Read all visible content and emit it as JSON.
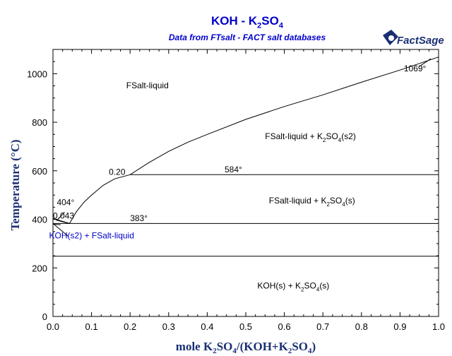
{
  "chart_data": {
    "type": "line",
    "title_main": "KOH - K",
    "title_main_sub": "2",
    "title_main_tail": "SO",
    "title_main_sub2": "4",
    "subtitle": "Data from FTsalt - FACT salt databases",
    "logo_text": "FactSage",
    "xlabel_parts": [
      "mole K",
      "2",
      "SO",
      "4",
      "/(KOH+K",
      "2",
      "SO",
      "4",
      ")"
    ],
    "ylabel": "Temperature (°C)",
    "xlim": [
      0,
      1
    ],
    "ylim": [
      0,
      1100
    ],
    "xticks": [
      "0.0",
      "0.1",
      "0.2",
      "0.3",
      "0.4",
      "0.5",
      "0.6",
      "0.7",
      "0.8",
      "0.9",
      "1.0"
    ],
    "yticks": [
      "0",
      "200",
      "400",
      "600",
      "800",
      "1000"
    ],
    "grid": false,
    "series": [
      {
        "kind": "liquidus",
        "x": [
          0.0,
          0.01,
          0.02,
          0.03,
          0.043,
          0.06,
          0.08,
          0.1,
          0.13,
          0.16,
          0.2,
          0.25,
          0.3,
          0.35,
          0.4,
          0.5,
          0.6,
          0.7,
          0.8,
          0.9,
          1.0
        ],
        "y": [
          404,
          397,
          392,
          388,
          383,
          430,
          470,
          500,
          540,
          567,
          584,
          635,
          680,
          718,
          750,
          812,
          865,
          913,
          965,
          1015,
          1069
        ]
      },
      {
        "kind": "koh-liquidus",
        "x": [
          0.0,
          0.043
        ],
        "y": [
          404,
          383
        ]
      },
      {
        "kind": "solidus-tick",
        "x": [
          0.0,
          0.02
        ],
        "y": [
          380,
          378
        ]
      },
      {
        "kind": "eutectic",
        "x": [
          0.0,
          1.0
        ],
        "y": [
          383,
          383
        ]
      },
      {
        "kind": "peritectic",
        "x": [
          0.2,
          1.0
        ],
        "y": [
          584,
          584
        ]
      },
      {
        "kind": "transition",
        "x": [
          0.0,
          1.0
        ],
        "y": [
          248,
          248
        ]
      }
    ],
    "annotations": [
      {
        "text": "FSalt-liquid",
        "x": 0.19,
        "y": 940
      },
      {
        "text": "FSalt-liquid + K2SO4(s2)",
        "x": 0.55,
        "y": 730,
        "sub": true
      },
      {
        "text": "FSalt-liquid + K2SO4(s)",
        "x": 0.56,
        "y": 465,
        "sub": true
      },
      {
        "text": "KOH(s) + K2SO4(s)",
        "x": 0.53,
        "y": 115,
        "sub": true
      },
      {
        "text": "584°",
        "x": 0.445,
        "y": 594
      },
      {
        "text": "383°",
        "x": 0.2,
        "y": 393
      },
      {
        "text": "404°",
        "x": 0.01,
        "y": 458
      },
      {
        "text": "0.20",
        "x": 0.145,
        "y": 584
      },
      {
        "text": "0.043",
        "x": 0.0,
        "y": 403
      },
      {
        "text": "1069°",
        "x": 0.91,
        "y": 1010
      },
      {
        "text": "KOH(s2) + FSalt-liquid",
        "x": -0.01,
        "y": 322,
        "blue": true
      }
    ]
  }
}
